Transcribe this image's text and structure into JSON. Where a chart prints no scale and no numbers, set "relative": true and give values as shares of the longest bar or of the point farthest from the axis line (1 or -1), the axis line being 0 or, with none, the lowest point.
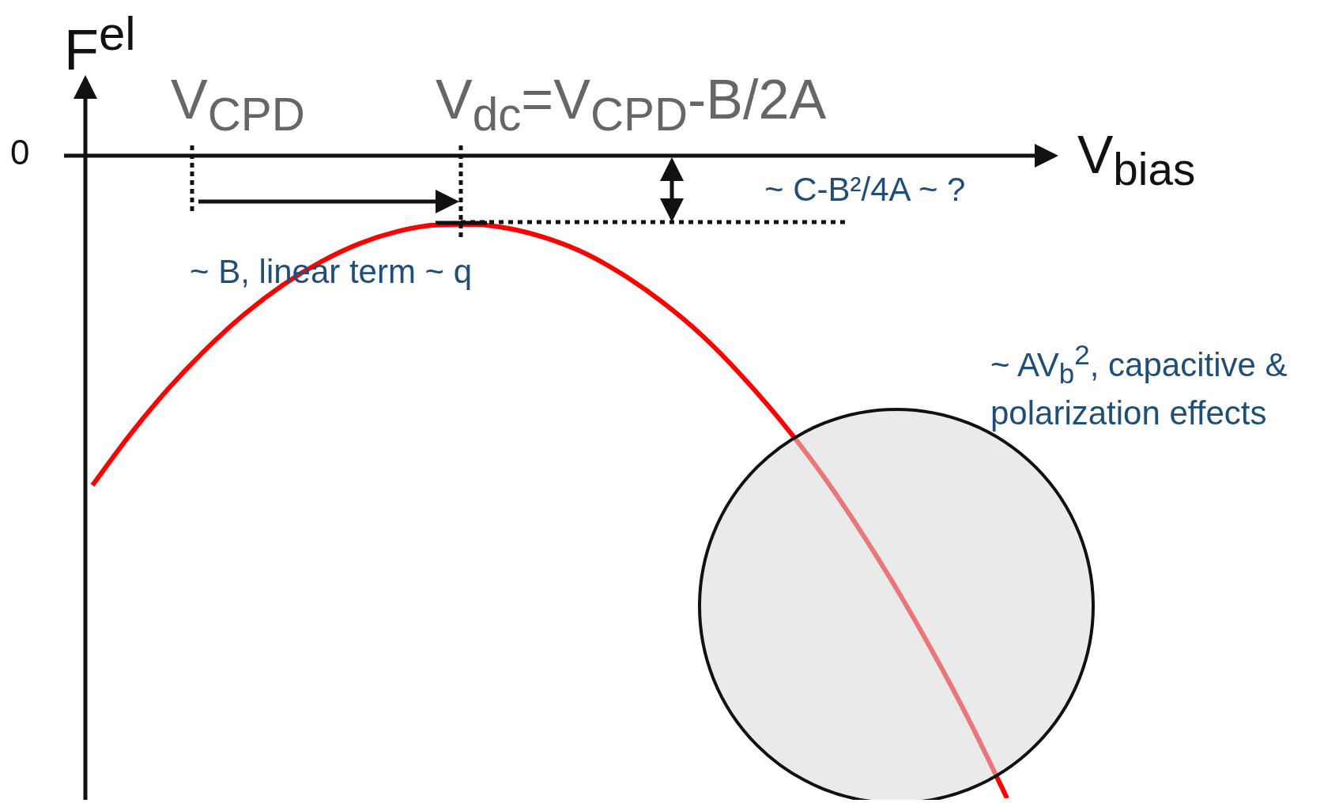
{
  "chart_data": {
    "type": "line",
    "relative": true,
    "ylabel": "F$^{el}$",
    "xlabel": "V$_{bias}$",
    "categories": [
      null,
      null,
      null,
      null,
      null,
      null,
      null,
      null,
      null,
      null,
      null,
      null,
      null,
      null,
      null,
      null,
      null,
      null,
      null,
      null,
      null,
      null,
      null,
      null,
      null
    ],
    "series": [
      {
        "color": "#ff0000",
        "values": [
          -0.513,
          -0.433,
          -0.362,
          -0.3,
          -0.246,
          -0.201,
          -0.165,
          -0.137,
          -0.118,
          -0.108,
          -0.107,
          -0.114,
          -0.13,
          -0.154,
          -0.188,
          -0.23,
          -0.28,
          -0.34,
          -0.408,
          -0.484,
          -0.57,
          -0.664,
          -0.767,
          -0.878,
          -1
        ]
      }
    ],
    "annotations": [
      "0",
      "V$_{CPD}$",
      "V$_{dc}$=V$_{CPD}$-B/2A",
      "~ C-B²/4A ~ ?",
      "~ B, linear term ~ q",
      "~ AV$_{b}$$^{2}$, capacitive & polarization effects"
    ],
    "marker": "none",
    "line_style": "solid",
    "grid": false,
    "legend": false
  }
}
